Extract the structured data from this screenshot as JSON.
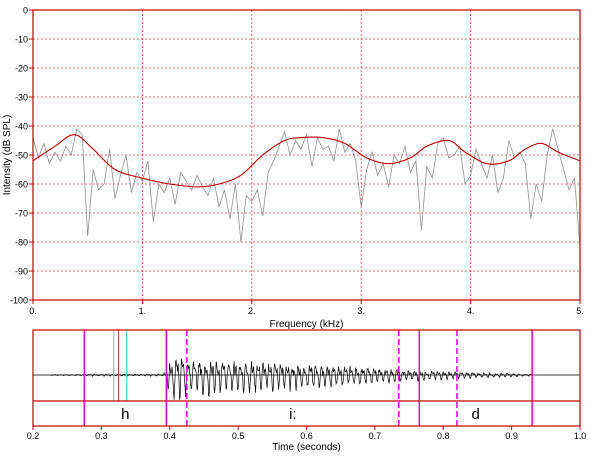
{
  "chart_data": [
    {
      "type": "line",
      "xlabel": "Frequency (kHz)",
      "ylabel": "Intensity (dB SPL)",
      "xlim": [
        0,
        5
      ],
      "ylim": [
        -100,
        0
      ],
      "xticks": [
        0,
        1,
        2,
        3,
        4,
        5
      ],
      "xtick_labels": [
        "0.",
        "1.",
        "2.",
        "3.",
        "4.",
        "5."
      ],
      "yticks": [
        0,
        -10,
        -20,
        -30,
        -40,
        -50,
        -60,
        -70,
        -80,
        -90,
        -100
      ],
      "ytick_labels": [
        "0",
        "-10",
        "-20",
        "-30",
        "-40",
        "-50",
        "-60",
        "-70",
        "-80",
        "-90",
        "-100"
      ],
      "grid": true,
      "series": [
        {
          "color": "#909090",
          "x": [
            0,
            0.05,
            0.1,
            0.15,
            0.2,
            0.25,
            0.3,
            0.35,
            0.4,
            0.45,
            0.5,
            0.55,
            0.6,
            0.65,
            0.7,
            0.75,
            0.8,
            0.85,
            0.9,
            0.95,
            1.0,
            1.05,
            1.1,
            1.15,
            1.2,
            1.25,
            1.3,
            1.35,
            1.4,
            1.45,
            1.5,
            1.55,
            1.6,
            1.65,
            1.7,
            1.75,
            1.8,
            1.85,
            1.9,
            1.95,
            2.0,
            2.05,
            2.1,
            2.15,
            2.2,
            2.25,
            2.3,
            2.35,
            2.4,
            2.45,
            2.5,
            2.55,
            2.6,
            2.65,
            2.7,
            2.75,
            2.8,
            2.85,
            2.9,
            2.95,
            3.0,
            3.05,
            3.1,
            3.15,
            3.2,
            3.25,
            3.3,
            3.35,
            3.4,
            3.45,
            3.5,
            3.55,
            3.6,
            3.65,
            3.7,
            3.75,
            3.8,
            3.85,
            3.9,
            3.95,
            4.0,
            4.05,
            4.1,
            4.15,
            4.2,
            4.25,
            4.3,
            4.35,
            4.4,
            4.45,
            4.5,
            4.55,
            4.6,
            4.65,
            4.7,
            4.75,
            4.8,
            4.85,
            4.9,
            4.95,
            5.0
          ],
          "y": [
            -44,
            -51,
            -46,
            -53,
            -49,
            -52,
            -47,
            -50,
            -41,
            -43,
            -78,
            -55,
            -62,
            -60,
            -48,
            -65,
            -57,
            -50,
            -63,
            -56,
            -59,
            -52,
            -73,
            -60,
            -63,
            -58,
            -67,
            -56,
            -59,
            -62,
            -57,
            -61,
            -64,
            -58,
            -68,
            -62,
            -72,
            -60,
            -80,
            -64,
            -66,
            -62,
            -71,
            -56,
            -52,
            -47,
            -42,
            -50,
            -45,
            -48,
            -43,
            -54,
            -44,
            -48,
            -47,
            -52,
            -41,
            -49,
            -46,
            -52,
            -68,
            -55,
            -49,
            -57,
            -53,
            -61,
            -50,
            -53,
            -47,
            -56,
            -52,
            -76,
            -54,
            -58,
            -46,
            -44,
            -51,
            -50,
            -47,
            -60,
            -57,
            -48,
            -53,
            -58,
            -50,
            -63,
            -58,
            -45,
            -51,
            -49,
            -53,
            -72,
            -60,
            -66,
            -50,
            -41,
            -48,
            -55,
            -62,
            -58,
            -82
          ]
        },
        {
          "color": "#c00000",
          "x": [
            0,
            0.2,
            0.38,
            0.55,
            0.75,
            1.0,
            1.25,
            1.5,
            1.7,
            1.9,
            2.1,
            2.3,
            2.45,
            2.65,
            2.85,
            3.05,
            3.25,
            3.45,
            3.6,
            3.8,
            3.95,
            4.15,
            4.35,
            4.5,
            4.65,
            4.8,
            5.0
          ],
          "y": [
            -52,
            -47,
            -43,
            -48,
            -55,
            -58,
            -60,
            -61,
            -60,
            -57,
            -50,
            -45,
            -44,
            -44,
            -46,
            -51,
            -53,
            -51,
            -47,
            -45,
            -49,
            -53,
            -52,
            -48,
            -46,
            -49,
            -52
          ]
        }
      ]
    },
    {
      "type": "line",
      "xlabel": "Time (seconds)",
      "xlim": [
        0.2,
        1.0
      ],
      "xticks": [
        0.2,
        0.3,
        0.4,
        0.5,
        0.6,
        0.7,
        0.8,
        0.9,
        1.0
      ],
      "xtick_labels": [
        "0.2",
        "0.3",
        "0.4",
        "0.5",
        "0.6",
        "0.7",
        "0.8",
        "0.9",
        "1.0"
      ],
      "segments": [
        {
          "label": "h",
          "start": 0.275,
          "end": 0.395
        },
        {
          "label": "i:",
          "start": 0.395,
          "end": 0.765
        },
        {
          "label": "d",
          "start": 0.765,
          "end": 0.93
        }
      ],
      "boundaries": [
        {
          "t": 0.275,
          "style": "solid",
          "color": "#e000e0"
        },
        {
          "t": 0.318,
          "style": "solid",
          "color": "#40d0d0"
        },
        {
          "t": 0.325,
          "style": "solid",
          "color": "#c04040"
        },
        {
          "t": 0.337,
          "style": "solid",
          "color": "#40d0d0"
        },
        {
          "t": 0.395,
          "style": "solid",
          "color": "#e000e0"
        },
        {
          "t": 0.425,
          "style": "dashed",
          "color": "#e000e0"
        },
        {
          "t": 0.735,
          "style": "dashed",
          "color": "#e000e0"
        },
        {
          "t": 0.765,
          "style": "solid",
          "color": "#e000e0"
        },
        {
          "t": 0.82,
          "style": "dashed",
          "color": "#e000e0"
        },
        {
          "t": 0.93,
          "style": "solid",
          "color": "#e000e0"
        }
      ],
      "waveform": {
        "voiced_start": 0.39,
        "voiced_end": 0.74,
        "end": 0.93
      }
    }
  ],
  "colors": {
    "frame": "#c00000",
    "grid": "#e04040",
    "spectrum": "#909090",
    "envelope": "#c00000",
    "waveform": "#000000"
  }
}
